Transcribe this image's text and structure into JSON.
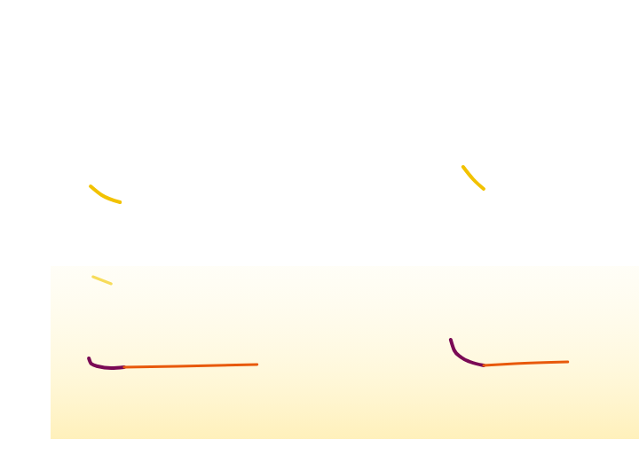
{
  "chart_data": {
    "type": "line",
    "tick_labels": false,
    "grid": false,
    "xlim": [
      0,
      100
    ],
    "ylim": [
      0,
      100
    ],
    "noise_band": [
      1,
      40
    ],
    "series": [
      {
        "color": "#7a0a55",
        "x": [
          6.5,
          6.9,
          8.0,
          10.3,
          12.5
        ],
        "values": [
          19.2,
          18.0,
          17.4,
          17.0,
          17.2
        ]
      },
      {
        "color": "#e8590c",
        "x": [
          12.5,
          21.6,
          35.1
        ],
        "values": [
          17.2,
          17.4,
          17.8
        ]
      },
      {
        "color": "#f2c200",
        "x": [
          6.8,
          8.7,
          11.8
        ],
        "values": [
          58.0,
          56.0,
          54.4
        ]
      },
      {
        "color": "#f7dc5a",
        "x": [
          7.2,
          10.3
        ],
        "values": [
          37.6,
          36.0
        ]
      },
      {
        "color": "#7a0a55",
        "x": [
          68.0,
          68.6,
          69.8,
          71.3,
          73.6
        ],
        "values": [
          23.4,
          21.0,
          19.4,
          18.4,
          17.6
        ]
      },
      {
        "color": "#e8590c",
        "x": [
          73.6,
          78.9,
          87.9
        ],
        "values": [
          17.6,
          18.0,
          18.4
        ]
      },
      {
        "color": "#f2c200",
        "x": [
          70.1,
          71.8,
          73.6
        ],
        "values": [
          62.4,
          59.6,
          57.4
        ]
      }
    ]
  }
}
